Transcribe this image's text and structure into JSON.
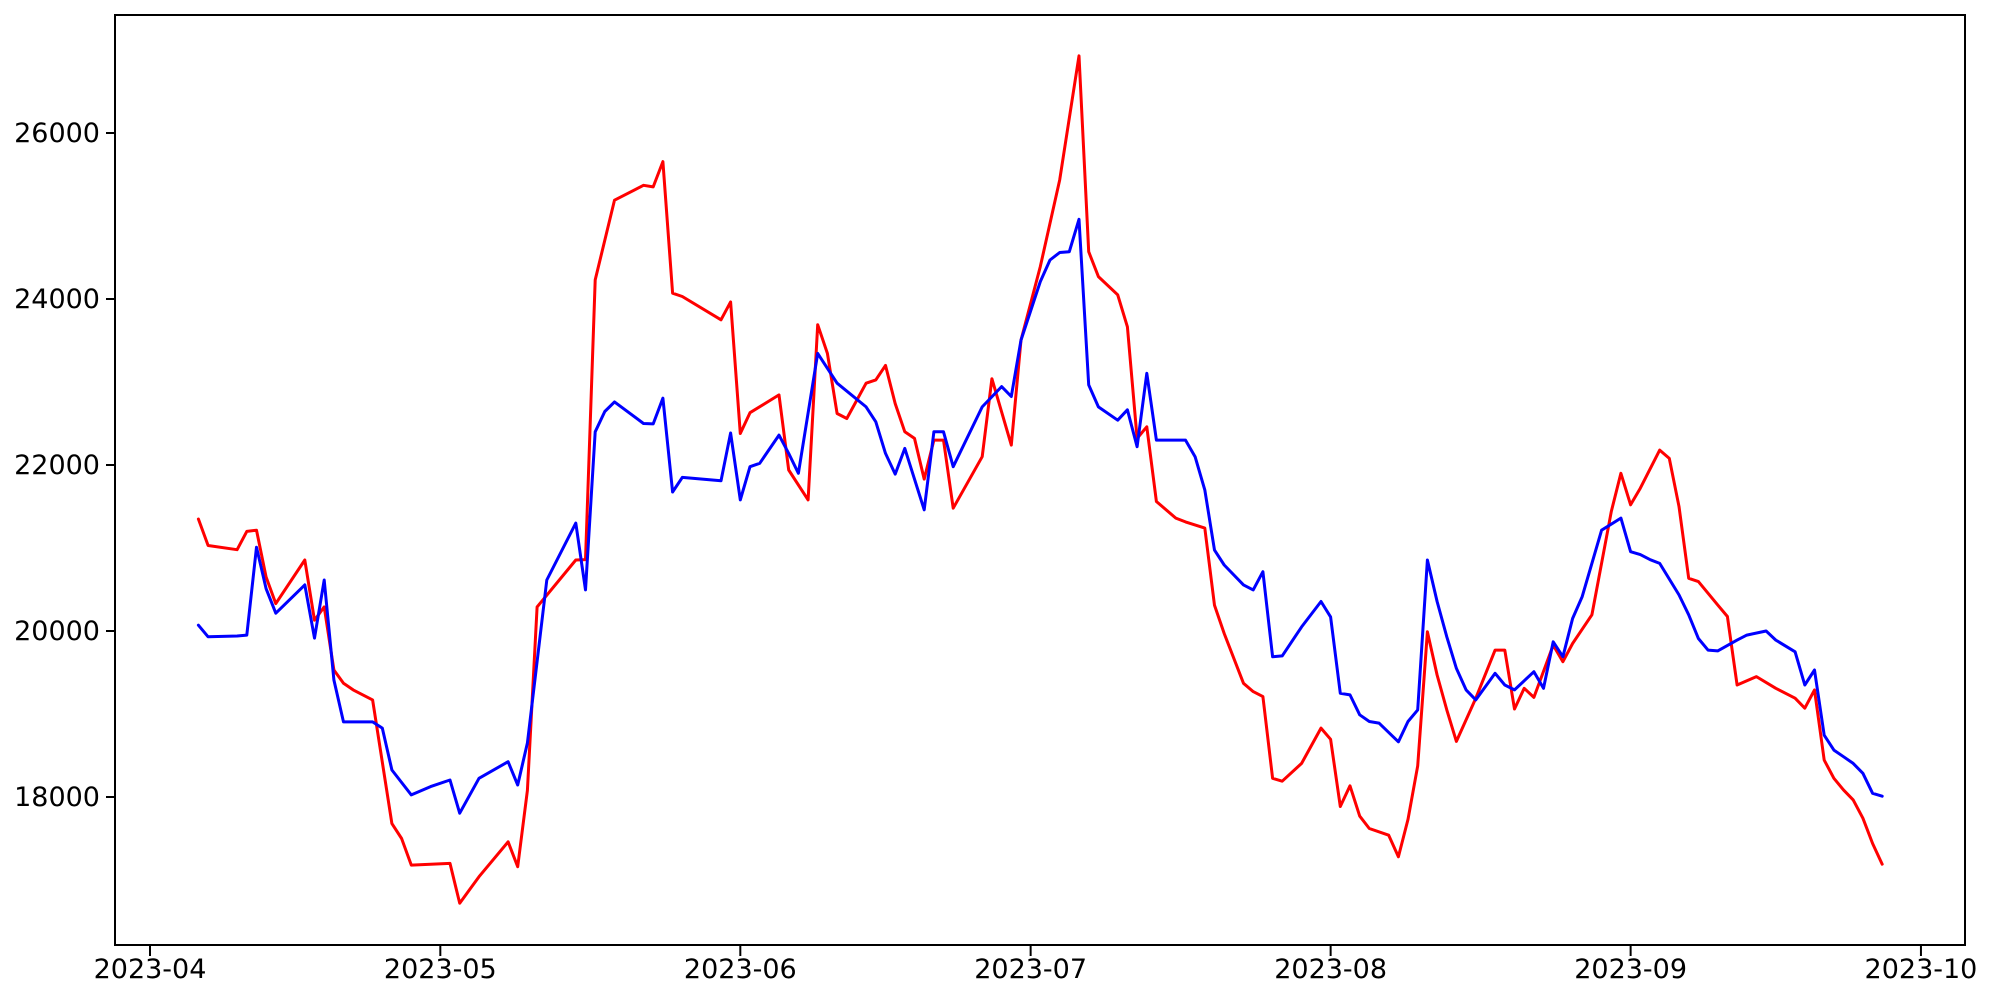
{
  "figure": {
    "background_color": "#ffffff",
    "axes_box_color": "#000000",
    "tick_font_size_px": 27
  },
  "chart_data": {
    "type": "line",
    "title": "",
    "xlabel": "",
    "ylabel": "",
    "grid": false,
    "legend_position": "none",
    "x_axis": {
      "tick_dates": [
        "2023-04-01",
        "2023-05-01",
        "2023-06-01",
        "2023-07-01",
        "2023-08-01",
        "2023-09-01",
        "2023-10-01"
      ],
      "tick_labels": [
        "2023-04",
        "2023-05",
        "2023-06",
        "2023-07",
        "2023-08",
        "2023-09",
        "2023-10"
      ],
      "range_dates": [
        "2023-03-28",
        "2023-10-06"
      ]
    },
    "y_axis": {
      "ticks": [
        18000,
        20000,
        22000,
        24000,
        26000
      ],
      "tick_labels": [
        "18000",
        "20000",
        "22000",
        "24000",
        "26000"
      ],
      "range": [
        16200,
        27430
      ]
    },
    "series": [
      {
        "name": "red-series",
        "color": "#ff0000",
        "points": [
          [
            "2023-04-06",
            21350
          ],
          [
            "2023-04-07",
            21030
          ],
          [
            "2023-04-10",
            20980
          ],
          [
            "2023-04-11",
            21200
          ],
          [
            "2023-04-12",
            21215
          ],
          [
            "2023-04-13",
            20650
          ],
          [
            "2023-04-14",
            20330
          ],
          [
            "2023-04-17",
            20855
          ],
          [
            "2023-04-18",
            20130
          ],
          [
            "2023-04-19",
            20290
          ],
          [
            "2023-04-20",
            19530
          ],
          [
            "2023-04-21",
            19370
          ],
          [
            "2023-04-22",
            19290
          ],
          [
            "2023-04-24",
            19170
          ],
          [
            "2023-04-26",
            17680
          ],
          [
            "2023-04-27",
            17500
          ],
          [
            "2023-04-28",
            17180
          ],
          [
            "2023-05-02",
            17200
          ],
          [
            "2023-05-03",
            16720
          ],
          [
            "2023-05-05",
            17040
          ],
          [
            "2023-05-08",
            17460
          ],
          [
            "2023-05-09",
            17160
          ],
          [
            "2023-05-10",
            18080
          ],
          [
            "2023-05-11",
            20290
          ],
          [
            "2023-05-15",
            20855
          ],
          [
            "2023-05-16",
            20860
          ],
          [
            "2023-05-17",
            24230
          ],
          [
            "2023-05-19",
            25190
          ],
          [
            "2023-05-22",
            25370
          ],
          [
            "2023-05-23",
            25350
          ],
          [
            "2023-05-24",
            25655
          ],
          [
            "2023-05-25",
            24070
          ],
          [
            "2023-05-26",
            24030
          ],
          [
            "2023-05-30",
            23750
          ],
          [
            "2023-05-31",
            23965
          ],
          [
            "2023-06-01",
            22380
          ],
          [
            "2023-06-02",
            22630
          ],
          [
            "2023-06-05",
            22845
          ],
          [
            "2023-06-06",
            21940
          ],
          [
            "2023-06-08",
            21580
          ],
          [
            "2023-06-09",
            23690
          ],
          [
            "2023-06-10",
            23345
          ],
          [
            "2023-06-11",
            22620
          ],
          [
            "2023-06-12",
            22560
          ],
          [
            "2023-06-14",
            22985
          ],
          [
            "2023-06-15",
            23025
          ],
          [
            "2023-06-16",
            23200
          ],
          [
            "2023-06-17",
            22740
          ],
          [
            "2023-06-18",
            22400
          ],
          [
            "2023-06-19",
            22320
          ],
          [
            "2023-06-20",
            21830
          ],
          [
            "2023-06-21",
            22300
          ],
          [
            "2023-06-22",
            22300
          ],
          [
            "2023-06-23",
            21480
          ],
          [
            "2023-06-26",
            22100
          ],
          [
            "2023-06-27",
            23040
          ],
          [
            "2023-06-29",
            22240
          ],
          [
            "2023-06-30",
            23505
          ],
          [
            "2023-07-02",
            24390
          ],
          [
            "2023-07-04",
            25435
          ],
          [
            "2023-07-06",
            26930
          ],
          [
            "2023-07-07",
            24570
          ],
          [
            "2023-07-08",
            24270
          ],
          [
            "2023-07-10",
            24050
          ],
          [
            "2023-07-11",
            23665
          ],
          [
            "2023-07-12",
            22320
          ],
          [
            "2023-07-13",
            22460
          ],
          [
            "2023-07-14",
            21560
          ],
          [
            "2023-07-16",
            21360
          ],
          [
            "2023-07-17",
            21315
          ],
          [
            "2023-07-19",
            21240
          ],
          [
            "2023-07-20",
            20310
          ],
          [
            "2023-07-21",
            19970
          ],
          [
            "2023-07-23",
            19370
          ],
          [
            "2023-07-24",
            19270
          ],
          [
            "2023-07-25",
            19210
          ],
          [
            "2023-07-26",
            18225
          ],
          [
            "2023-07-27",
            18190
          ],
          [
            "2023-07-29",
            18405
          ],
          [
            "2023-07-31",
            18830
          ],
          [
            "2023-08-01",
            18695
          ],
          [
            "2023-08-02",
            17885
          ],
          [
            "2023-08-03",
            18135
          ],
          [
            "2023-08-04",
            17770
          ],
          [
            "2023-08-05",
            17620
          ],
          [
            "2023-08-07",
            17540
          ],
          [
            "2023-08-08",
            17280
          ],
          [
            "2023-08-09",
            17730
          ],
          [
            "2023-08-10",
            18375
          ],
          [
            "2023-08-11",
            19990
          ],
          [
            "2023-08-12",
            19470
          ],
          [
            "2023-08-13",
            19050
          ],
          [
            "2023-08-14",
            18670
          ],
          [
            "2023-08-16",
            19190
          ],
          [
            "2023-08-18",
            19770
          ],
          [
            "2023-08-19",
            19770
          ],
          [
            "2023-08-20",
            19060
          ],
          [
            "2023-08-21",
            19310
          ],
          [
            "2023-08-22",
            19200
          ],
          [
            "2023-08-24",
            19830
          ],
          [
            "2023-08-25",
            19630
          ],
          [
            "2023-08-26",
            19850
          ],
          [
            "2023-08-28",
            20195
          ],
          [
            "2023-08-30",
            21440
          ],
          [
            "2023-08-31",
            21900
          ],
          [
            "2023-09-01",
            21520
          ],
          [
            "2023-09-02",
            21720
          ],
          [
            "2023-09-04",
            22180
          ],
          [
            "2023-09-05",
            22080
          ],
          [
            "2023-09-06",
            21500
          ],
          [
            "2023-09-07",
            20635
          ],
          [
            "2023-09-08",
            20595
          ],
          [
            "2023-09-09",
            20455
          ],
          [
            "2023-09-10",
            20315
          ],
          [
            "2023-09-11",
            20175
          ],
          [
            "2023-09-12",
            19350
          ],
          [
            "2023-09-14",
            19450
          ],
          [
            "2023-09-16",
            19310
          ],
          [
            "2023-09-18",
            19190
          ],
          [
            "2023-09-19",
            19070
          ],
          [
            "2023-09-20",
            19290
          ],
          [
            "2023-09-21",
            18445
          ],
          [
            "2023-09-22",
            18225
          ],
          [
            "2023-09-23",
            18085
          ],
          [
            "2023-09-24",
            17965
          ],
          [
            "2023-09-25",
            17745
          ],
          [
            "2023-09-26",
            17440
          ],
          [
            "2023-09-27",
            17190
          ]
        ]
      },
      {
        "name": "blue-series",
        "color": "#0000ff",
        "points": [
          [
            "2023-04-06",
            20070
          ],
          [
            "2023-04-07",
            19930
          ],
          [
            "2023-04-10",
            19940
          ],
          [
            "2023-04-11",
            19950
          ],
          [
            "2023-04-12",
            21010
          ],
          [
            "2023-04-13",
            20510
          ],
          [
            "2023-04-14",
            20215
          ],
          [
            "2023-04-17",
            20555
          ],
          [
            "2023-04-18",
            19915
          ],
          [
            "2023-04-19",
            20615
          ],
          [
            "2023-04-20",
            19410
          ],
          [
            "2023-04-21",
            18905
          ],
          [
            "2023-04-24",
            18905
          ],
          [
            "2023-04-25",
            18830
          ],
          [
            "2023-04-26",
            18325
          ],
          [
            "2023-04-28",
            18025
          ],
          [
            "2023-04-30",
            18125
          ],
          [
            "2023-05-02",
            18205
          ],
          [
            "2023-05-03",
            17805
          ],
          [
            "2023-05-05",
            18225
          ],
          [
            "2023-05-08",
            18425
          ],
          [
            "2023-05-09",
            18145
          ],
          [
            "2023-05-10",
            18650
          ],
          [
            "2023-05-12",
            20615
          ],
          [
            "2023-05-15",
            21300
          ],
          [
            "2023-05-16",
            20495
          ],
          [
            "2023-05-17",
            22400
          ],
          [
            "2023-05-18",
            22645
          ],
          [
            "2023-05-19",
            22760
          ],
          [
            "2023-05-22",
            22500
          ],
          [
            "2023-05-23",
            22495
          ],
          [
            "2023-05-24",
            22805
          ],
          [
            "2023-05-25",
            21675
          ],
          [
            "2023-05-26",
            21850
          ],
          [
            "2023-05-30",
            21810
          ],
          [
            "2023-05-31",
            22385
          ],
          [
            "2023-06-01",
            21580
          ],
          [
            "2023-06-02",
            21980
          ],
          [
            "2023-06-03",
            22020
          ],
          [
            "2023-06-05",
            22360
          ],
          [
            "2023-06-06",
            22140
          ],
          [
            "2023-06-07",
            21900
          ],
          [
            "2023-06-09",
            23345
          ],
          [
            "2023-06-10",
            23165
          ],
          [
            "2023-06-11",
            22985
          ],
          [
            "2023-06-14",
            22700
          ],
          [
            "2023-06-15",
            22520
          ],
          [
            "2023-06-16",
            22140
          ],
          [
            "2023-06-17",
            21890
          ],
          [
            "2023-06-18",
            22200
          ],
          [
            "2023-06-20",
            21460
          ],
          [
            "2023-06-21",
            22400
          ],
          [
            "2023-06-22",
            22400
          ],
          [
            "2023-06-23",
            21980
          ],
          [
            "2023-06-26",
            22700
          ],
          [
            "2023-06-28",
            22945
          ],
          [
            "2023-06-29",
            22825
          ],
          [
            "2023-06-30",
            23505
          ],
          [
            "2023-07-02",
            24210
          ],
          [
            "2023-07-03",
            24470
          ],
          [
            "2023-07-04",
            24560
          ],
          [
            "2023-07-05",
            24570
          ],
          [
            "2023-07-06",
            24960
          ],
          [
            "2023-07-07",
            22965
          ],
          [
            "2023-07-08",
            22700
          ],
          [
            "2023-07-10",
            22540
          ],
          [
            "2023-07-11",
            22665
          ],
          [
            "2023-07-12",
            22220
          ],
          [
            "2023-07-13",
            23105
          ],
          [
            "2023-07-14",
            22300
          ],
          [
            "2023-07-17",
            22300
          ],
          [
            "2023-07-18",
            22100
          ],
          [
            "2023-07-19",
            21700
          ],
          [
            "2023-07-20",
            20975
          ],
          [
            "2023-07-21",
            20795
          ],
          [
            "2023-07-23",
            20555
          ],
          [
            "2023-07-24",
            20495
          ],
          [
            "2023-07-25",
            20715
          ],
          [
            "2023-07-26",
            19690
          ],
          [
            "2023-07-27",
            19700
          ],
          [
            "2023-07-29",
            20050
          ],
          [
            "2023-07-31",
            20355
          ],
          [
            "2023-08-01",
            20170
          ],
          [
            "2023-08-02",
            19250
          ],
          [
            "2023-08-03",
            19230
          ],
          [
            "2023-08-04",
            18990
          ],
          [
            "2023-08-05",
            18910
          ],
          [
            "2023-08-06",
            18890
          ],
          [
            "2023-08-08",
            18665
          ],
          [
            "2023-08-09",
            18910
          ],
          [
            "2023-08-10",
            19050
          ],
          [
            "2023-08-11",
            20855
          ],
          [
            "2023-08-12",
            20355
          ],
          [
            "2023-08-13",
            19930
          ],
          [
            "2023-08-14",
            19550
          ],
          [
            "2023-08-15",
            19290
          ],
          [
            "2023-08-16",
            19170
          ],
          [
            "2023-08-18",
            19490
          ],
          [
            "2023-08-19",
            19350
          ],
          [
            "2023-08-20",
            19290
          ],
          [
            "2023-08-22",
            19510
          ],
          [
            "2023-08-23",
            19310
          ],
          [
            "2023-08-24",
            19870
          ],
          [
            "2023-08-25",
            19690
          ],
          [
            "2023-08-26",
            20150
          ],
          [
            "2023-08-27",
            20415
          ],
          [
            "2023-08-29",
            21215
          ],
          [
            "2023-08-31",
            21360
          ],
          [
            "2023-09-01",
            20955
          ],
          [
            "2023-09-02",
            20920
          ],
          [
            "2023-09-03",
            20860
          ],
          [
            "2023-09-04",
            20815
          ],
          [
            "2023-09-06",
            20435
          ],
          [
            "2023-09-07",
            20195
          ],
          [
            "2023-09-08",
            19910
          ],
          [
            "2023-09-09",
            19770
          ],
          [
            "2023-09-10",
            19760
          ],
          [
            "2023-09-12",
            19890
          ],
          [
            "2023-09-13",
            19950
          ],
          [
            "2023-09-15",
            20000
          ],
          [
            "2023-09-16",
            19890
          ],
          [
            "2023-09-18",
            19750
          ],
          [
            "2023-09-19",
            19350
          ],
          [
            "2023-09-20",
            19530
          ],
          [
            "2023-09-21",
            18745
          ],
          [
            "2023-09-22",
            18565
          ],
          [
            "2023-09-23",
            18485
          ],
          [
            "2023-09-24",
            18405
          ],
          [
            "2023-09-25",
            18285
          ],
          [
            "2023-09-26",
            18045
          ],
          [
            "2023-09-27",
            18010
          ]
        ]
      }
    ]
  }
}
